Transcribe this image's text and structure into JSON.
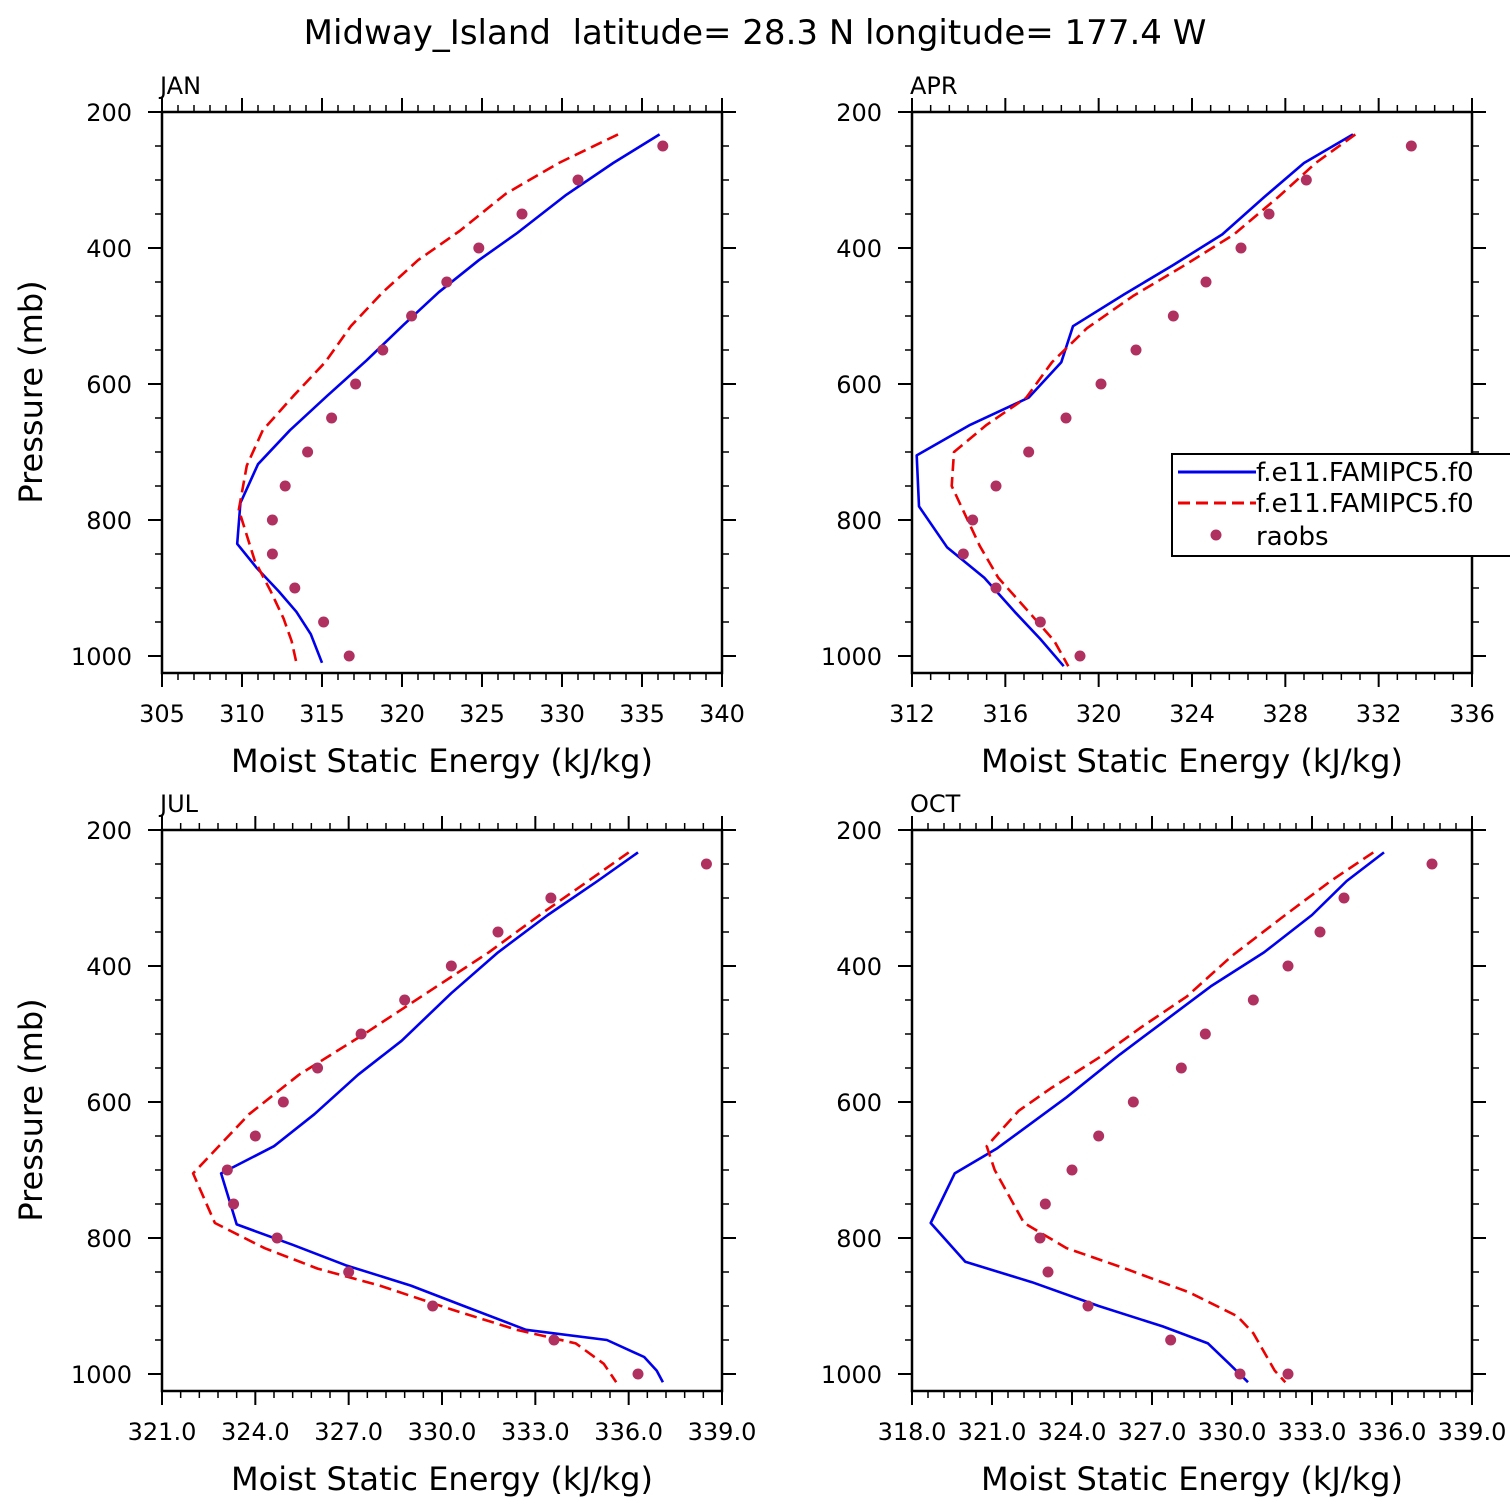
{
  "title": "Midway_Island  latitude= 28.3 N longitude= 177.4 W",
  "colors": {
    "model1": "#0000ee",
    "model2": "#ee0000",
    "raobs": "#b03060"
  },
  "legend": {
    "entries": [
      "f.e11.FAMIPC5.f0",
      "f.e11.FAMIPC5.f0",
      "raobs"
    ],
    "location": "right edge of APR panel"
  },
  "chart_data": [
    {
      "type": "line",
      "panel": "JAN",
      "xlabel": "Moist Static Energy (kJ/kg)",
      "ylabel": "Pressure (mb)",
      "xlim": [
        305,
        340
      ],
      "xticks": [
        "305",
        "310",
        "315",
        "320",
        "325",
        "330",
        "335",
        "340"
      ],
      "ylim": [
        1025,
        200
      ],
      "yticks": [
        "200",
        "400",
        "600",
        "800",
        "1000"
      ],
      "series": [
        {
          "name": "f.e11.FAMIPC5.f0",
          "style": "solid",
          "x": [
            336.1,
            333.2,
            330.2,
            327.2,
            324.8,
            322.3,
            320.1,
            317.8,
            315.3,
            313.0,
            311.0,
            309.9,
            309.7,
            310.9,
            312.3,
            313.4,
            314.3,
            315.0
          ],
          "y": [
            233,
            275,
            323,
            378,
            418,
            465,
            513,
            565,
            618,
            668,
            718,
            775,
            835,
            870,
            905,
            935,
            968,
            1010
          ]
        },
        {
          "name": "f.e11.FAMIPC5.f0",
          "style": "dashed",
          "x": [
            333.5,
            329.8,
            326.5,
            323.6,
            321.0,
            318.8,
            316.8,
            315.2,
            313.2,
            311.3,
            310.3,
            309.8,
            310.8,
            311.8,
            312.6,
            313.1,
            313.4
          ],
          "y": [
            233,
            275,
            320,
            375,
            418,
            465,
            515,
            568,
            618,
            668,
            720,
            785,
            860,
            905,
            945,
            978,
            1010
          ]
        },
        {
          "name": "raobs",
          "style": "markers",
          "x": [
            336.3,
            331.0,
            327.5,
            324.8,
            322.8,
            320.6,
            318.8,
            317.1,
            315.6,
            314.1,
            312.7,
            311.9,
            311.9,
            313.3,
            315.1,
            316.7
          ],
          "y": [
            250,
            300,
            350,
            400,
            450,
            500,
            550,
            600,
            650,
            700,
            750,
            800,
            850,
            900,
            950,
            1000
          ]
        }
      ]
    },
    {
      "type": "line",
      "panel": "APR",
      "xlabel": "Moist Static Energy (kJ/kg)",
      "ylabel": "",
      "xlim": [
        312,
        336
      ],
      "xticks": [
        "312",
        "316",
        "320",
        "324",
        "328",
        "332",
        "336"
      ],
      "ylim": [
        1025,
        200
      ],
      "yticks": [
        "200",
        "400",
        "600",
        "800",
        "1000"
      ],
      "series": [
        {
          "name": "f.e11.FAMIPC5.f0",
          "style": "solid",
          "x": [
            330.9,
            328.8,
            327.1,
            325.3,
            323.2,
            321.1,
            318.9,
            318.4,
            317.0,
            314.5,
            312.2,
            312.3,
            313.5,
            315.1,
            316.4,
            317.5,
            318.5
          ],
          "y": [
            233,
            275,
            325,
            380,
            425,
            468,
            515,
            568,
            620,
            660,
            705,
            780,
            840,
            885,
            935,
            975,
            1015
          ]
        },
        {
          "name": "f.e11.FAMIPC5.f0",
          "style": "dashed",
          "x": [
            331.0,
            329.3,
            327.7,
            325.8,
            323.7,
            321.5,
            319.5,
            318.0,
            316.9,
            315.2,
            313.8,
            313.7,
            314.9,
            315.7,
            317.0,
            318.1,
            318.7
          ],
          "y": [
            233,
            275,
            325,
            380,
            425,
            470,
            518,
            568,
            620,
            660,
            700,
            750,
            838,
            885,
            935,
            978,
            1015
          ]
        },
        {
          "name": "raobs",
          "style": "markers",
          "x": [
            333.4,
            328.9,
            327.3,
            326.1,
            324.6,
            323.2,
            321.6,
            320.1,
            318.6,
            317.0,
            315.6,
            314.6,
            314.2,
            315.6,
            317.5,
            319.2
          ],
          "y": [
            250,
            300,
            350,
            400,
            450,
            500,
            550,
            600,
            650,
            700,
            750,
            800,
            850,
            900,
            950,
            1000
          ]
        }
      ]
    },
    {
      "type": "line",
      "panel": "JUL",
      "xlabel": "Moist Static Energy (kJ/kg)",
      "ylabel": "Pressure (mb)",
      "xlim": [
        321,
        339
      ],
      "xticks": [
        "321.0",
        "324.0",
        "327.0",
        "330.0",
        "333.0",
        "336.0",
        "339.0"
      ],
      "ylim": [
        1025,
        200
      ],
      "yticks": [
        "200",
        "400",
        "600",
        "800",
        "1000"
      ],
      "series": [
        {
          "name": "f.e11.FAMIPC5.f0",
          "style": "solid",
          "x": [
            336.3,
            335.0,
            333.4,
            331.8,
            330.3,
            328.7,
            327.3,
            325.9,
            324.6,
            322.9,
            323.4,
            325.2,
            326.9,
            329.0,
            330.7,
            332.7,
            335.3,
            336.5,
            336.9,
            337.1
          ],
          "y": [
            233,
            275,
            325,
            380,
            440,
            510,
            560,
            618,
            665,
            705,
            780,
            810,
            840,
            870,
            900,
            935,
            950,
            975,
            995,
            1012
          ]
        },
        {
          "name": "f.e11.FAMIPC5.f0",
          "style": "dashed",
          "x": [
            336.0,
            334.7,
            333.2,
            331.5,
            329.5,
            327.5,
            325.4,
            323.8,
            322.0,
            322.7,
            324.3,
            326.0,
            328.0,
            330.3,
            332.4,
            334.3,
            335.2,
            335.6
          ],
          "y": [
            233,
            275,
            323,
            380,
            440,
            500,
            560,
            618,
            705,
            778,
            815,
            845,
            870,
            905,
            935,
            955,
            985,
            1012
          ]
        },
        {
          "name": "raobs",
          "style": "markers",
          "x": [
            338.5,
            333.5,
            331.8,
            330.3,
            328.8,
            327.4,
            326.0,
            324.9,
            324.0,
            323.1,
            323.3,
            324.7,
            327.0,
            329.7,
            333.6,
            336.3
          ],
          "y": [
            250,
            300,
            350,
            400,
            450,
            500,
            550,
            600,
            650,
            700,
            750,
            800,
            850,
            900,
            950,
            1000
          ]
        }
      ]
    },
    {
      "type": "line",
      "panel": "OCT",
      "xlabel": "Moist Static Energy (kJ/kg)",
      "ylabel": "",
      "xlim": [
        318,
        339
      ],
      "xticks": [
        "318.0",
        "321.0",
        "324.0",
        "327.0",
        "330.0",
        "333.0",
        "336.0",
        "339.0"
      ],
      "ylim": [
        1025,
        200
      ],
      "yticks": [
        "200",
        "400",
        "600",
        "800",
        "1000"
      ],
      "series": [
        {
          "name": "f.e11.FAMIPC5.f0",
          "style": "solid",
          "x": [
            335.7,
            334.3,
            333.0,
            331.2,
            329.2,
            327.4,
            325.8,
            323.8,
            321.2,
            319.6,
            318.7,
            320.0,
            322.5,
            325.0,
            327.4,
            329.1,
            329.9,
            330.6
          ],
          "y": [
            233,
            275,
            325,
            380,
            430,
            483,
            530,
            593,
            668,
            705,
            778,
            835,
            865,
            900,
            930,
            955,
            985,
            1012
          ]
        },
        {
          "name": "f.e11.FAMIPC5.f0",
          "style": "dashed",
          "x": [
            335.3,
            333.7,
            332.0,
            330.0,
            328.3,
            326.6,
            325.0,
            323.2,
            322.0,
            320.8,
            321.1,
            322.2,
            323.8,
            326.0,
            328.4,
            330.2,
            330.8,
            331.6,
            332.0
          ],
          "y": [
            233,
            275,
            325,
            385,
            445,
            490,
            535,
            580,
            613,
            665,
            700,
            778,
            815,
            845,
            880,
            915,
            940,
            995,
            1012
          ]
        },
        {
          "name": "raobs",
          "style": "markers",
          "x": [
            337.5,
            334.2,
            333.3,
            332.1,
            330.8,
            329.0,
            328.1,
            326.3,
            325.0,
            324.0,
            323.0,
            322.8,
            323.1,
            324.6,
            327.7,
            330.3,
            332.1
          ],
          "y": [
            250,
            300,
            350,
            400,
            450,
            500,
            550,
            600,
            650,
            700,
            750,
            800,
            850,
            900,
            950,
            1000,
            1000
          ]
        }
      ]
    }
  ]
}
